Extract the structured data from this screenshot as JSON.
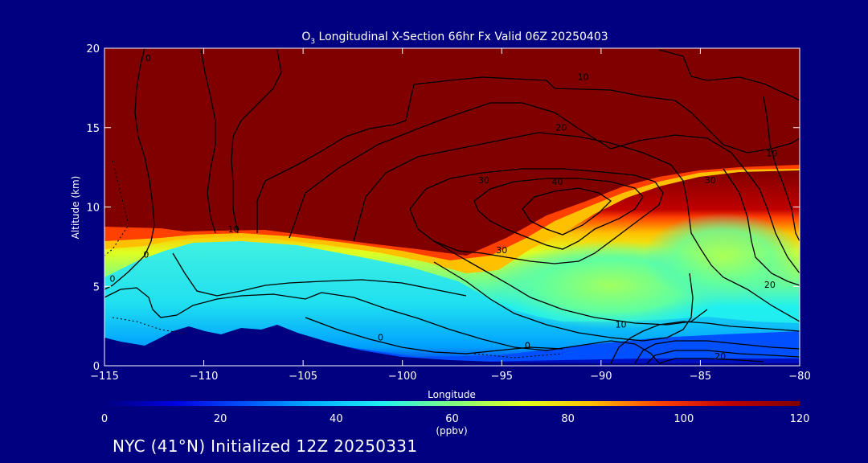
{
  "chart_data": {
    "type": "heatmap",
    "title_prefix": "O",
    "title_subscript": "3",
    "title_suffix": " Longitudinal X-Section 66hr  Fx Valid 06Z 20250403",
    "xlabel": "Longitude",
    "ylabel": "Altitude (km)",
    "xlim": [
      -115,
      -80
    ],
    "ylim": [
      0,
      20
    ],
    "x_ticks": [
      -115,
      -110,
      -105,
      -100,
      -95,
      -90,
      -85,
      -80
    ],
    "x_tick_labels": [
      "−115",
      "−110",
      "−105",
      "−100",
      "−95",
      "−90",
      "−85",
      "−80"
    ],
    "y_ticks": [
      0,
      5,
      10,
      15,
      20
    ],
    "y_tick_labels": [
      "0",
      "5",
      "10",
      "15",
      "20"
    ],
    "colorbar": {
      "min": 0,
      "max": 120,
      "ticks": [
        0,
        20,
        40,
        60,
        80,
        100,
        120
      ],
      "tick_labels": [
        "0",
        "20",
        "40",
        "60",
        "80",
        "100",
        "120"
      ],
      "unit": "(ppbv)",
      "colors": [
        "#000080",
        "#0000e0",
        "#0050ff",
        "#00b0ff",
        "#20f0f0",
        "#80ff80",
        "#e0ff20",
        "#ffc000",
        "#ff4000",
        "#c00000",
        "#800000"
      ]
    },
    "contour_labels": [
      {
        "text": "0",
        "lon": -112.8,
        "alt": 19.2
      },
      {
        "text": "10",
        "lon": -90.9,
        "alt": 18.0
      },
      {
        "text": "20",
        "lon": -92.0,
        "alt": 14.8
      },
      {
        "text": "30",
        "lon": -95.9,
        "alt": 11.5
      },
      {
        "text": "40",
        "lon": -92.2,
        "alt": 11.4
      },
      {
        "text": "30",
        "lon": -84.5,
        "alt": 11.5
      },
      {
        "text": "10",
        "lon": -81.4,
        "alt": 13.2
      },
      {
        "text": "10",
        "lon": -108.5,
        "alt": 8.4
      },
      {
        "text": "0",
        "lon": -112.9,
        "alt": 6.8
      },
      {
        "text": "0",
        "lon": -114.6,
        "alt": 5.3
      },
      {
        "text": "30",
        "lon": -95.0,
        "alt": 7.1
      },
      {
        "text": "20",
        "lon": -81.5,
        "alt": 4.9
      },
      {
        "text": "10",
        "lon": -89.0,
        "alt": 2.4
      },
      {
        "text": "0",
        "lon": -101.1,
        "alt": 1.6
      },
      {
        "text": "0",
        "lon": -93.7,
        "alt": 1.1
      },
      {
        "text": "20",
        "lon": -84.0,
        "alt": 0.4
      }
    ]
  },
  "footer": "NYC (41°N) Initialized 12Z 20250331"
}
